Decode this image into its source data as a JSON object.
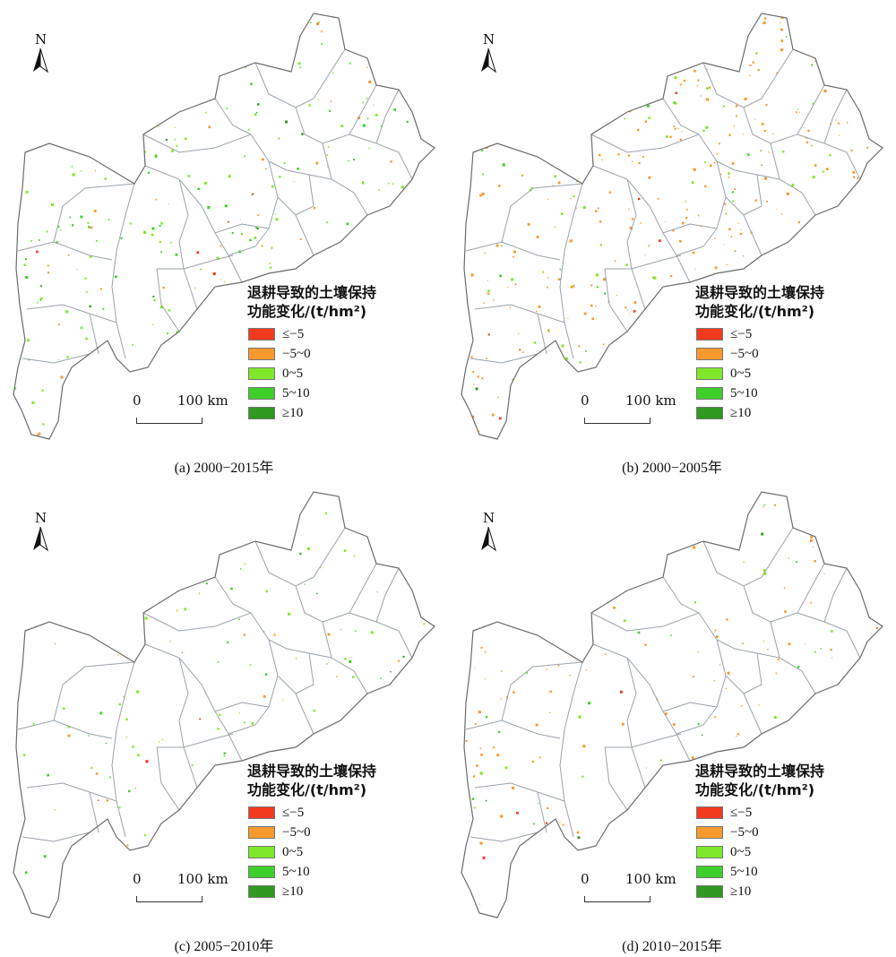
{
  "legend": {
    "title_line1": "退耕导致的土壤保持",
    "title_line2": "功能变化/(t/hm²)",
    "items": [
      {
        "label": "≤−5",
        "color": "#f23a1f"
      },
      {
        "label": "−5~0",
        "color": "#f79a2e"
      },
      {
        "label": "0~5",
        "color": "#7fe82a"
      },
      {
        "label": "5~10",
        "color": "#3fcf2a"
      },
      {
        "label": "≥10",
        "color": "#2f9a1f"
      }
    ]
  },
  "north_label": "N",
  "scale": {
    "zero": "0",
    "distance": "100 km"
  },
  "panels": [
    {
      "caption": "(a) 2000−2015年",
      "pattern": {
        "green": 0.9,
        "orange": 0.25,
        "red": 0.06
      }
    },
    {
      "caption": "(b) 2000−2005年",
      "pattern": {
        "green": 0.35,
        "orange": 0.9,
        "red": 0.05
      }
    },
    {
      "caption": "(c) 2005−2010年",
      "pattern": {
        "green": 0.35,
        "orange": 0.05,
        "red": 0.02
      }
    },
    {
      "caption": "(d) 2010−2015年",
      "pattern": {
        "green": 0.2,
        "orange": 0.45,
        "red": 0.03
      }
    }
  ]
}
